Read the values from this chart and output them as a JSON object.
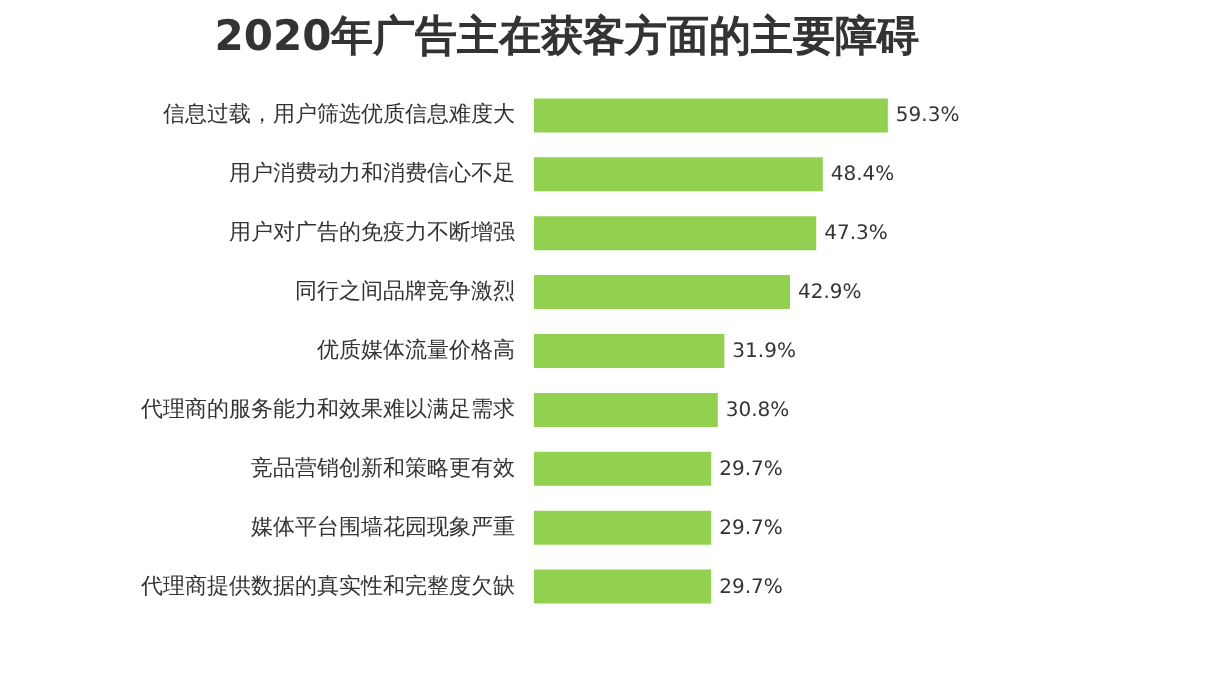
{
  "chart_data": {
    "type": "bar",
    "orientation": "horizontal",
    "title": "2020年广告主在获客方面的主要障碍",
    "categories": [
      "信息过载，用户筛选优质信息难度大",
      "用户消费动力和消费信心不足",
      "用户对广告的免疫力不断增强",
      "同行之间品牌竞争激烈",
      "优质媒体流量价格高",
      "代理商的服务能力和效果难以满足需求",
      "竞品营销创新和策略更有效",
      "媒体平台围墙花园现象严重",
      "代理商提供数据的真实性和完整度欠缺"
    ],
    "values": [
      59.3,
      48.4,
      47.3,
      42.9,
      31.9,
      30.8,
      29.7,
      29.7,
      29.7
    ],
    "value_labels": [
      "59.3%",
      "48.4%",
      "47.3%",
      "42.9%",
      "31.9%",
      "30.8%",
      "29.7%",
      "29.7%",
      "29.7%"
    ],
    "color": "#92d050",
    "grid": false
  }
}
